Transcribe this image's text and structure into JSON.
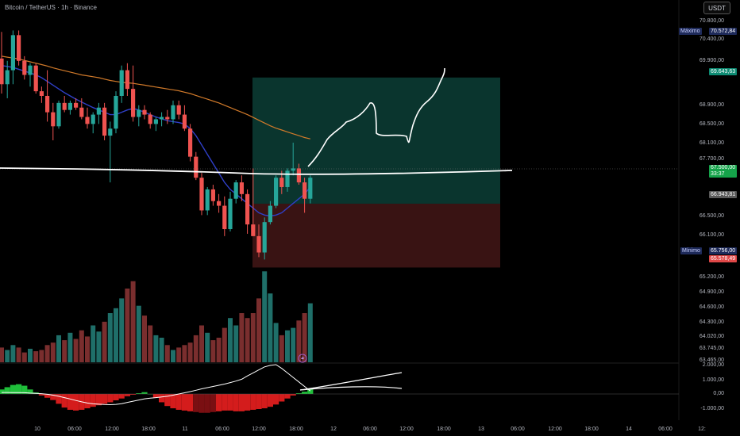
{
  "header": {
    "symbol": "Bitcoin / TetherUS · 1h · Binance",
    "currency": "USDT"
  },
  "price_axis": {
    "ticks": [
      "70.800,00",
      "70.400,00",
      "69.900,00",
      "68.900,00",
      "68.500,00",
      "68.100,00",
      "67.700,00",
      "66.500,00",
      "66.100,00",
      "65.200,00",
      "64.900,00",
      "64.600,00",
      "64.300,00",
      "64.020,00",
      "63.745,00",
      "63.465,00"
    ],
    "max_label": "Máximo",
    "max_value": "70.572,84",
    "target_value": "69.643,63",
    "current_price": "67.500,00",
    "countdown": "33:37",
    "entry_value": "66.943,81",
    "min_label": "Mínimo",
    "min_value": "65.756,00",
    "stop_value": "65.578,49"
  },
  "indicator_axis": {
    "ticks": [
      "2.000,00",
      "1.000,00",
      "0,00",
      "-1.000,00"
    ]
  },
  "time_axis": {
    "ticks": [
      "10",
      "06:00",
      "12:00",
      "18:00",
      "11",
      "06:00",
      "12:00",
      "18:00",
      "12",
      "06:00",
      "12:00",
      "18:00",
      "13",
      "06:00",
      "12:00",
      "18:00",
      "14",
      "06:00",
      "12:"
    ]
  },
  "colors": {
    "bull": "#26a69a",
    "bear": "#ef5350",
    "ema_fast": "#2f3fc7",
    "ema_slow": "#d17a2a",
    "target_zone": "#0b3b33",
    "stop_zone": "#3c1414"
  },
  "chart_data": {
    "type": "candlestick",
    "title": "Bitcoin / TetherUS · 1h · Binance",
    "ylim": [
      63465,
      70800
    ],
    "candles": [
      [
        70050,
        70620,
        69300,
        69500
      ],
      [
        69500,
        70000,
        69200,
        69800
      ],
      [
        69800,
        70650,
        69500,
        70550
      ],
      [
        70550,
        70650,
        69900,
        70000
      ],
      [
        70000,
        70100,
        69600,
        69700
      ],
      [
        69700,
        69950,
        69450,
        69900
      ],
      [
        69900,
        69950,
        69300,
        69350
      ],
      [
        69350,
        69450,
        69100,
        69250
      ],
      [
        69250,
        69800,
        68700,
        68900
      ],
      [
        68900,
        69100,
        68300,
        68600
      ],
      [
        68600,
        69150,
        68550,
        69100
      ],
      [
        69100,
        69250,
        68900,
        68950
      ],
      [
        68950,
        69150,
        68850,
        69100
      ],
      [
        69100,
        69200,
        68950,
        69000
      ],
      [
        69000,
        69200,
        68750,
        68800
      ],
      [
        68800,
        69000,
        68550,
        68650
      ],
      [
        68650,
        68900,
        68450,
        68850
      ],
      [
        68850,
        69100,
        68650,
        69000
      ],
      [
        69000,
        69100,
        68300,
        68400
      ],
      [
        68400,
        68700,
        67400,
        68550
      ],
      [
        68550,
        69350,
        68450,
        69250
      ],
      [
        69250,
        69900,
        69100,
        69800
      ],
      [
        69800,
        69950,
        69250,
        69400
      ],
      [
        69400,
        69900,
        68700,
        68800
      ],
      [
        68800,
        69050,
        68600,
        68950
      ],
      [
        68950,
        69050,
        68750,
        68850
      ],
      [
        68850,
        68900,
        68550,
        68650
      ],
      [
        68650,
        68800,
        68500,
        68750
      ],
      [
        68750,
        68900,
        68600,
        68800
      ],
      [
        68800,
        68950,
        68650,
        68750
      ],
      [
        68750,
        69150,
        68650,
        69050
      ],
      [
        69050,
        69150,
        68750,
        68850
      ],
      [
        68850,
        69050,
        68500,
        68550
      ],
      [
        68550,
        68650,
        67850,
        67950
      ],
      [
        67950,
        68050,
        67450,
        67500
      ],
      [
        67500,
        67600,
        66700,
        66800
      ],
      [
        66800,
        67300,
        66700,
        67250
      ],
      [
        67250,
        67350,
        66900,
        67000
      ],
      [
        67000,
        67150,
        66750,
        66900
      ],
      [
        66900,
        67100,
        66250,
        66400
      ],
      [
        66400,
        67200,
        66350,
        67050
      ],
      [
        67050,
        67450,
        66950,
        67400
      ],
      [
        67400,
        67550,
        67000,
        67150
      ],
      [
        67150,
        67250,
        66300,
        66500
      ],
      [
        66500,
        67700,
        66250,
        66250
      ],
      [
        66250,
        66500,
        65800,
        65900
      ],
      [
        65900,
        66650,
        65750,
        66550
      ],
      [
        66550,
        67000,
        66500,
        66900
      ],
      [
        66900,
        67550,
        66850,
        67500
      ],
      [
        67500,
        67650,
        67150,
        67300
      ],
      [
        67300,
        67700,
        67200,
        67650
      ],
      [
        67650,
        68250,
        67550,
        67700
      ],
      [
        67700,
        67800,
        67350,
        67400
      ],
      [
        67400,
        67500,
        66750,
        67050
      ],
      [
        67050,
        67550,
        66950,
        67500
      ]
    ],
    "volumes": [
      12,
      10,
      14,
      12,
      8,
      11,
      9,
      10,
      14,
      16,
      22,
      18,
      24,
      19,
      26,
      21,
      30,
      25,
      33,
      40,
      44,
      52,
      60,
      66,
      46,
      38,
      30,
      22,
      20,
      14,
      10,
      12,
      14,
      16,
      22,
      30,
      24,
      18,
      20,
      28,
      36,
      30,
      40,
      36,
      40,
      52,
      74,
      56,
      32,
      22,
      26,
      28,
      34,
      40,
      48
    ],
    "ema_fast": [
      69900,
      69880,
      69860,
      69820,
      69780,
      69740,
      69700,
      69640,
      69560,
      69480,
      69400,
      69320,
      69250,
      69180,
      69120,
      69060,
      69000,
      68950,
      68900,
      68850,
      68850,
      68900,
      68950,
      68980,
      68950,
      68900,
      68850,
      68800,
      68760,
      68720,
      68700,
      68680,
      68650,
      68550,
      68400,
      68200,
      68000,
      67800,
      67600,
      67400,
      67250,
      67150,
      67050,
      66950,
      66850,
      66750,
      66700,
      66680,
      66700,
      66750,
      66850,
      66950,
      67050,
      67150,
      67300
    ],
    "ema_slow": [
      70100,
      70080,
      70060,
      70040,
      70010,
      69980,
      69950,
      69920,
      69890,
      69850,
      69820,
      69790,
      69760,
      69730,
      69700,
      69680,
      69660,
      69640,
      69610,
      69580,
      69560,
      69540,
      69530,
      69520,
      69500,
      69480,
      69460,
      69440,
      69420,
      69400,
      69380,
      69360,
      69330,
      69300,
      69260,
      69220,
      69180,
      69140,
      69100,
      69050,
      69000,
      68950,
      68900,
      68850,
      68790,
      68730,
      68670,
      68610,
      68560,
      68520,
      68480,
      68440,
      68400,
      68360,
      68330
    ],
    "macd": [
      100,
      100,
      95,
      90,
      85,
      60,
      40,
      20,
      -20,
      -80,
      -150,
      -240,
      -330,
      -430,
      -520,
      -600,
      -650,
      -680,
      -700,
      -710,
      -690,
      -640,
      -560,
      -480,
      -400,
      -320,
      -280,
      -240,
      -200,
      -150,
      -80,
      0,
      80,
      160,
      250,
      340,
      420,
      500,
      580,
      660,
      760,
      860,
      980,
      1200,
      1400,
      1600,
      1800,
      1900,
      2000,
      1700,
      1400,
      1100,
      800,
      500,
      200
    ],
    "histogram": [
      300,
      450,
      600,
      650,
      550,
      300,
      100,
      -100,
      -250,
      -400,
      -650,
      -900,
      -1050,
      -1100,
      -1050,
      -950,
      -850,
      -750,
      -650,
      -550,
      -420,
      -300,
      -150,
      -50,
      50,
      120,
      0,
      -250,
      -550,
      -800,
      -950,
      -1050,
      -1100,
      -1150,
      -1200,
      -1250,
      -1250,
      -1200,
      -1150,
      -1100,
      -1100,
      -1150,
      -1150,
      -1100,
      -1050,
      -1000,
      -950,
      -850,
      -700,
      -500,
      -300,
      -100,
      50,
      150,
      300
    ],
    "position": {
      "target": 69643.63,
      "entry": 66943.81,
      "stop": 65578.49
    }
  }
}
